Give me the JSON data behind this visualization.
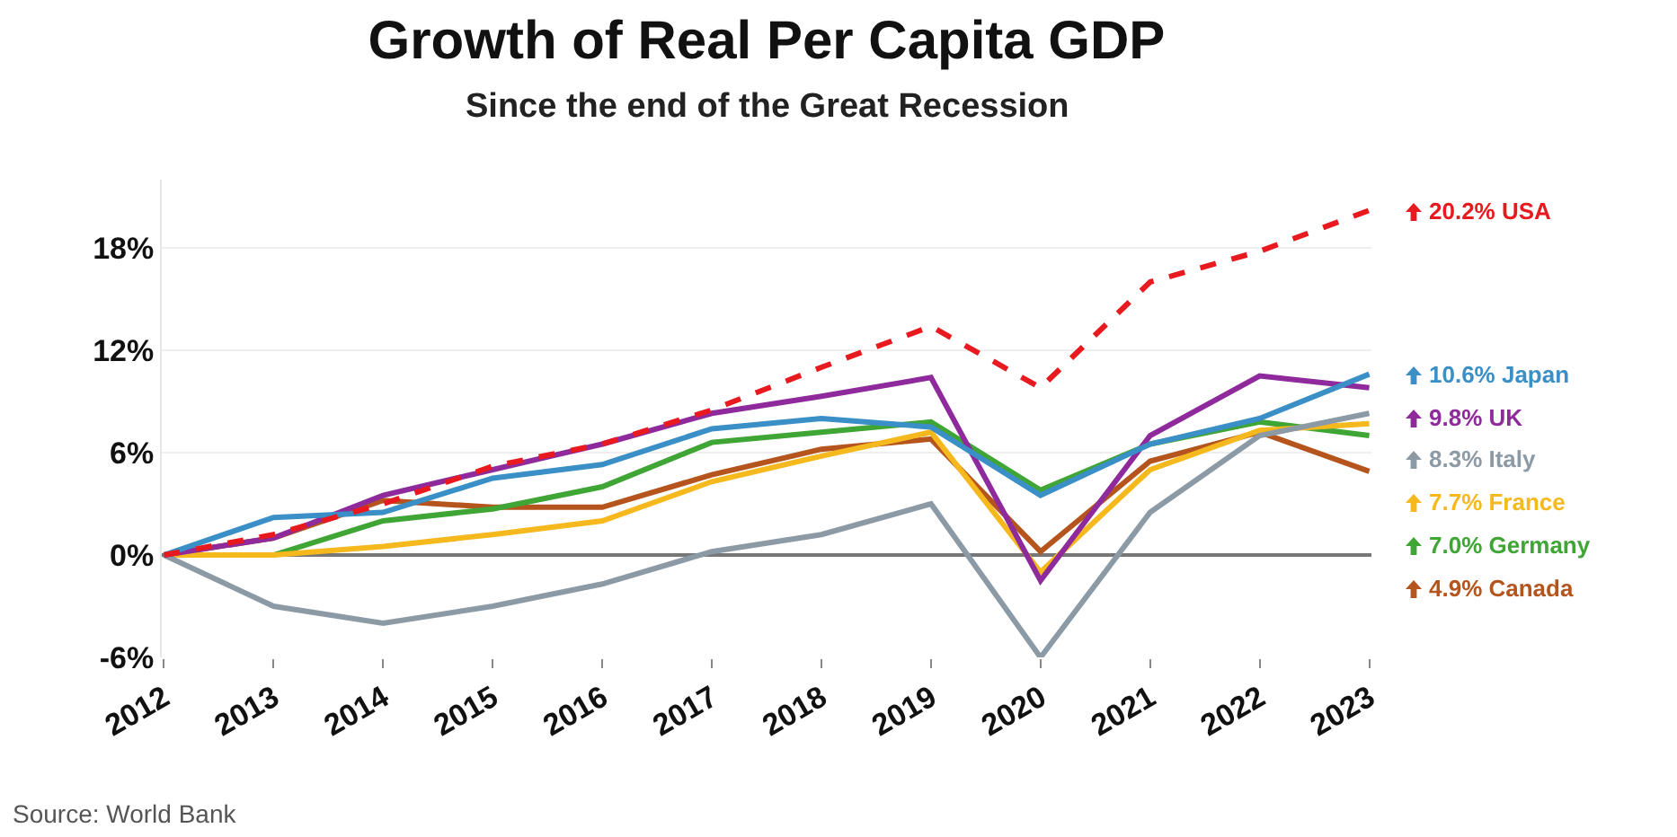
{
  "chart_data": {
    "type": "line",
    "title": "Growth of Real Per Capita GDP",
    "subtitle": "Since the end of the Great Recession",
    "categories": [
      "2012",
      "2013",
      "2014",
      "2015",
      "2016",
      "2017",
      "2018",
      "2019",
      "2020",
      "2021",
      "2022",
      "2023"
    ],
    "series": [
      {
        "name": "20.2% USA",
        "color": "#e8191f",
        "line_style": "dashed",
        "values": [
          0,
          1.2,
          3.0,
          5.2,
          6.5,
          8.5,
          11,
          13.4,
          9.8,
          16,
          17.8,
          20.2
        ]
      },
      {
        "name": "10.6% Japan",
        "color": "#3a8fc7",
        "values": [
          0,
          2.2,
          2.5,
          4.5,
          5.3,
          7.4,
          8.0,
          7.5,
          3.5,
          6.5,
          8.0,
          10.6
        ]
      },
      {
        "name": "9.8% UK",
        "color": "#8e2a9b",
        "values": [
          0,
          1.0,
          3.5,
          5.0,
          6.5,
          8.3,
          9.3,
          10.4,
          -1.5,
          7.0,
          10.5,
          9.8
        ]
      },
      {
        "name": "8.3% Italy",
        "color": "#8c9aa6",
        "values": [
          0,
          -3,
          -4,
          -3,
          -1.7,
          0.2,
          1.2,
          3,
          -6,
          2.5,
          7,
          8.3
        ]
      },
      {
        "name": "7.7% France",
        "color": "#f5b81d",
        "values": [
          0,
          0,
          0.5,
          1.2,
          2.0,
          4.3,
          5.8,
          7.2,
          -1.0,
          5.0,
          7.3,
          7.7
        ]
      },
      {
        "name": "7.0% Germany",
        "color": "#3fa535",
        "values": [
          0,
          0,
          2,
          2.7,
          4,
          6.6,
          7.2,
          7.8,
          3.8,
          6.5,
          7.8,
          7.0
        ]
      },
      {
        "name": "4.9% Canada",
        "color": "#b5541c",
        "values": [
          0,
          1.0,
          3.2,
          2.8,
          2.8,
          4.7,
          6.2,
          6.8,
          0.2,
          5.5,
          7.2,
          4.9
        ]
      }
    ],
    "ylim": [
      -6,
      22
    ],
    "yticks": [
      {
        "value": -6,
        "label": "-6%"
      },
      {
        "value": 0,
        "label": "0%"
      },
      {
        "value": 6,
        "label": "6%"
      },
      {
        "value": 12,
        "label": "12%"
      },
      {
        "value": 18,
        "label": "18%"
      }
    ],
    "grid": "y",
    "legend": "right",
    "marker": "none",
    "line_style": "solid",
    "annotations": [
      "Source: World Bank"
    ]
  }
}
